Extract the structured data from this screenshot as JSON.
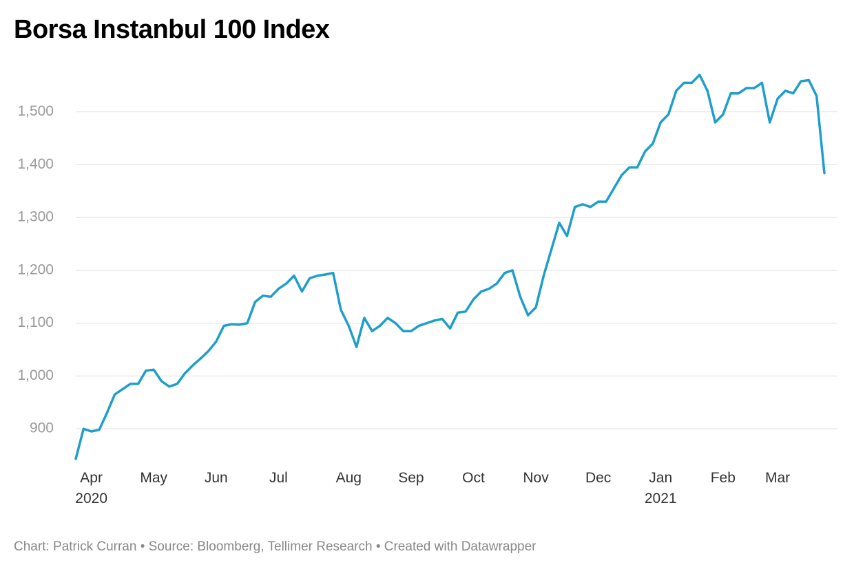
{
  "chart_data": {
    "type": "line",
    "title": "Borsa Instanbul 100 Index",
    "footer": "Chart: Patrick Curran • Source: Bloomberg, Tellimer Research • Created with Datawrapper",
    "color": "#1f9ecb",
    "grid": true,
    "ylim": [
      839,
      1575
    ],
    "yticks": [
      900,
      {
        "value": 1000,
        "label": "1,000"
      },
      {
        "value": 1100,
        "label": "1,100"
      },
      {
        "value": 1200,
        "label": "1,200"
      },
      {
        "value": 1300,
        "label": "1,300"
      },
      {
        "value": 1400,
        "label": "1,400"
      },
      {
        "value": 1500,
        "label": "1,500"
      }
    ],
    "categories": [
      null,
      null,
      "Apr 2020",
      null,
      null,
      null,
      null,
      null,
      null,
      null,
      "May",
      null,
      null,
      null,
      null,
      null,
      null,
      null,
      "Jun",
      null,
      null,
      null,
      null,
      null,
      null,
      null,
      "Jul",
      null,
      null,
      null,
      null,
      null,
      null,
      null,
      null,
      "Aug",
      null,
      null,
      null,
      null,
      null,
      null,
      null,
      "Sep",
      null,
      null,
      null,
      null,
      null,
      null,
      null,
      "Oct",
      null,
      null,
      null,
      null,
      null,
      null,
      null,
      "Nov",
      null,
      null,
      null,
      null,
      null,
      null,
      null,
      "Dec",
      null,
      null,
      null,
      null,
      null,
      null,
      null,
      "Jan 2021",
      null,
      null,
      null,
      null,
      null,
      null,
      null,
      "Feb",
      null,
      null,
      null,
      null,
      null,
      null,
      "Mar",
      null,
      null,
      null,
      null,
      null,
      null
    ],
    "values": [
      843,
      900,
      895,
      898,
      930,
      965,
      975,
      985,
      985,
      1010,
      1012,
      990,
      980,
      985,
      1005,
      1020,
      1033,
      1047,
      1065,
      1095,
      1098,
      1097,
      1100,
      1140,
      1152,
      1150,
      1165,
      1175,
      1190,
      1160,
      1185,
      1190,
      1192,
      1195,
      1125,
      1095,
      1055,
      1110,
      1085,
      1095,
      1110,
      1100,
      1085,
      1085,
      1095,
      1100,
      1105,
      1108,
      1090,
      1120,
      1122,
      1145,
      1160,
      1165,
      1175,
      1195,
      1200,
      1150,
      1115,
      1130,
      1190,
      1240,
      1290,
      1265,
      1320,
      1325,
      1320,
      1330,
      1330,
      1355,
      1380,
      1395,
      1395,
      1425,
      1440,
      1480,
      1495,
      1540,
      1555,
      1555,
      1570,
      1540,
      1480,
      1495,
      1535,
      1535,
      1545,
      1545,
      1555,
      1480,
      1525,
      1540,
      1535,
      1558,
      1560,
      1530,
      1384
    ]
  }
}
